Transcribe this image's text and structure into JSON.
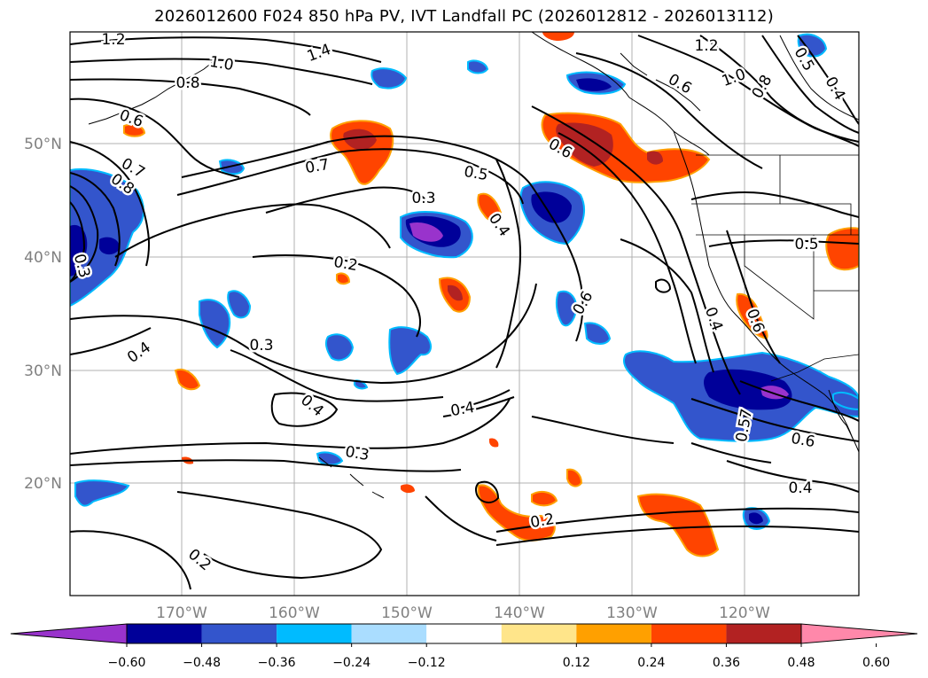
{
  "title": "2026012600 F024 850 hPa PV, IVT Landfall PC (2026012812 - 2026013112)",
  "map": {
    "lon_ticks": [
      "170°W",
      "160°W",
      "150°W",
      "140°W",
      "130°W",
      "120°W"
    ],
    "lat_ticks": [
      "50°N",
      "40°N",
      "30°N",
      "20°N"
    ],
    "grid": true,
    "tick_color": "#808080"
  },
  "contour_labels": [
    {
      "text": "1.2",
      "id": "c-1-2-a"
    },
    {
      "text": "1.0",
      "id": "c-1-0-a"
    },
    {
      "text": "0.8",
      "id": "c-0-8-a"
    },
    {
      "text": "0.6",
      "id": "c-0-6-a"
    },
    {
      "text": "0.7",
      "id": "c-0-7-a"
    },
    {
      "text": "0.8",
      "id": "c-0-8-b"
    },
    {
      "text": "0.3",
      "id": "c-0-3-a"
    },
    {
      "text": "0.7",
      "id": "c-0-7-b"
    },
    {
      "text": "0.5",
      "id": "c-0-5-a"
    },
    {
      "text": "0.3",
      "id": "c-0-3-b"
    },
    {
      "text": "0.4",
      "id": "c-0-4-a"
    },
    {
      "text": "0.2",
      "id": "c-0-2-a"
    },
    {
      "text": "0.6",
      "id": "c-0-6-b"
    },
    {
      "text": "0.3",
      "id": "c-0-3-c"
    },
    {
      "text": "0.4",
      "id": "c-0-4-b"
    },
    {
      "text": "0.4",
      "id": "c-0-4-c"
    },
    {
      "text": "0.4",
      "id": "c-0-4-d"
    },
    {
      "text": "0.3",
      "id": "c-0-3-d"
    },
    {
      "text": "0.2",
      "id": "c-0-2-b"
    },
    {
      "text": "0.2",
      "id": "c-0-2-c"
    },
    {
      "text": "0.6",
      "id": "c-0-6-c"
    },
    {
      "text": "0.4",
      "id": "c-0-4-e"
    },
    {
      "text": "0.6",
      "id": "c-0-6-d"
    },
    {
      "text": "1.2",
      "id": "c-1-2-b"
    },
    {
      "text": "1.0",
      "id": "c-1-0-b"
    },
    {
      "text": "0.8",
      "id": "c-0-8-c"
    },
    {
      "text": "0.5",
      "id": "c-0-5-b"
    },
    {
      "text": "0.4",
      "id": "c-0-4-f"
    },
    {
      "text": "0.6",
      "id": "c-0-6-e"
    },
    {
      "text": "0.4",
      "id": "c-0-4-g"
    },
    {
      "text": "0.5",
      "id": "c-0-5-c"
    },
    {
      "text": "0.5",
      "id": "c-0-5-d"
    },
    {
      "text": "0.57",
      "id": "c-0-57"
    },
    {
      "text": "0.6",
      "id": "c-0-6-f"
    },
    {
      "text": "0.4",
      "id": "c-0-4-h"
    },
    {
      "text": "1.4",
      "id": "c-1-4"
    }
  ],
  "colorbar": {
    "colors": [
      "#9933cc",
      "#000099",
      "#3355cc",
      "#00bbff",
      "#aaddff",
      "#ffffff",
      "#ffe58a",
      "#ffa000",
      "#ff4400",
      "#b22222",
      "#ff88aa"
    ],
    "ticks": [
      "−0.60",
      "−0.48",
      "−0.36",
      "−0.24",
      "−0.12",
      "0.12",
      "0.24",
      "0.36",
      "0.48",
      "0.60"
    ]
  },
  "shading_colors": {
    "purple": "#9933cc",
    "navy": "#000099",
    "blue": "#3355cc",
    "cyan": "#00bbff",
    "lightblue": "#aaddff",
    "yellow": "#ffe58a",
    "orange": "#ffa000",
    "redorange": "#ff4400",
    "darkred": "#b22222"
  }
}
